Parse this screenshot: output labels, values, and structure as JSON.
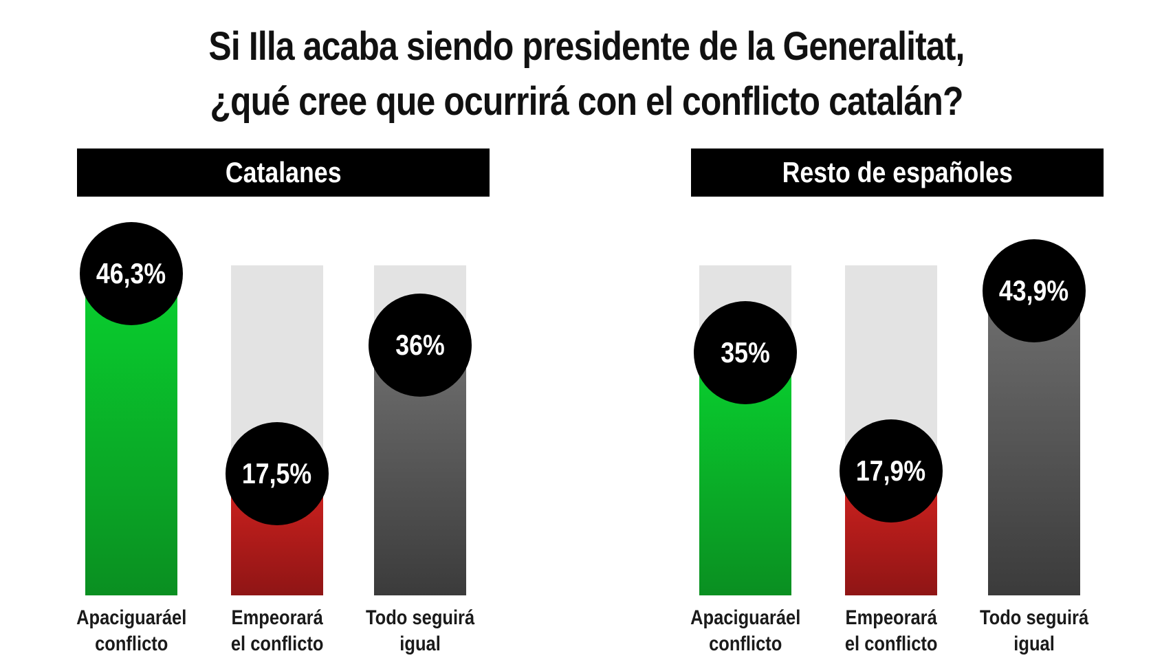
{
  "title": {
    "line1": "Si Illa acaba siendo presidente de la Generalitat,",
    "line2": "¿qué cree que ocurrirá con el conflicto catalán?"
  },
  "colors": {
    "green": "#0bbf2a",
    "red": "#c41e1e",
    "gray": "#555555",
    "track": "#e3e3e3"
  },
  "chart_data": [
    {
      "type": "bar",
      "title": "Catalanes",
      "categories": [
        "Apaciguaráel\nconflicto",
        "Empeorará\nel conflicto",
        "Todo seguirá\nigual"
      ],
      "values": [
        46.3,
        17.5,
        36
      ],
      "value_labels": [
        "46,3%",
        "17,5%",
        "36%"
      ],
      "colors": [
        "green",
        "red",
        "gray"
      ],
      "ylim": [
        0,
        50
      ]
    },
    {
      "type": "bar",
      "title": "Resto de españoles",
      "categories": [
        "Apaciguaráel\nconflicto",
        "Empeorará\nel conflicto",
        "Todo seguirá\nigual"
      ],
      "values": [
        35,
        17.9,
        43.9
      ],
      "value_labels": [
        "35%",
        "17,9%",
        "43,9%"
      ],
      "colors": [
        "green",
        "red",
        "gray"
      ],
      "ylim": [
        0,
        50
      ]
    }
  ]
}
